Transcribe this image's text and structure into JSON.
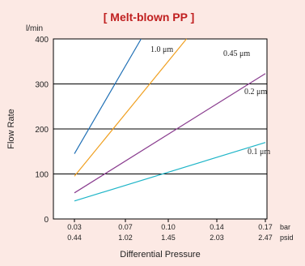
{
  "chart_data": {
    "type": "line",
    "title": "[ Melt-blown PP ]",
    "y_unit": "l/min",
    "ylabel": "Flow Rate",
    "xlabel": "Differential Pressure",
    "x_units": [
      "bar",
      "psid"
    ],
    "ylim": [
      0,
      400
    ],
    "y_ticks": [
      0,
      100,
      200,
      300,
      400
    ],
    "y_tick_labels": [
      "0",
      "100",
      "200",
      "300",
      "400"
    ],
    "x_ticks": [
      0.03,
      0.07,
      0.1,
      0.14,
      0.17
    ],
    "x_tick_labels_bar": [
      "0.03",
      "0.07",
      "0.10",
      "0.14",
      "0.17"
    ],
    "x_tick_labels_psid": [
      "0.44",
      "1.02",
      "1.45",
      "2.03",
      "2.47"
    ],
    "xlim": [
      0.03,
      0.17
    ],
    "grid": "horizontal",
    "series": [
      {
        "name": "1.0 μm",
        "color": "#1f6fb5",
        "points": [
          [
            0.03,
            145
          ],
          [
            0.081,
            400
          ]
        ]
      },
      {
        "name": "0.45 μm",
        "color": "#f0a020",
        "points": [
          [
            0.03,
            95
          ],
          [
            0.115,
            400
          ]
        ]
      },
      {
        "name": "0.2 μm",
        "color": "#8a3d8f",
        "points": [
          [
            0.03,
            58
          ],
          [
            0.17,
            323
          ]
        ]
      },
      {
        "name": "0.1 μm",
        "color": "#1fb5c8",
        "points": [
          [
            0.03,
            40
          ],
          [
            0.17,
            170
          ]
        ]
      }
    ]
  }
}
